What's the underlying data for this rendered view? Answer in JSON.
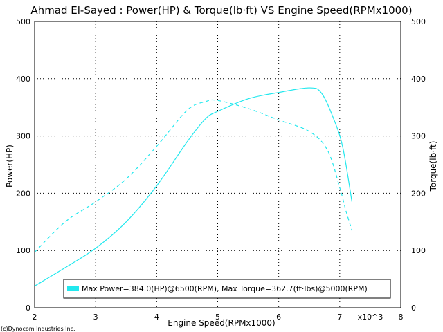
{
  "chart_data": {
    "type": "line",
    "title": "Ahmad El-Sayed : Power(HP) & Torque(lb·ft) VS Engine Speed(RPMx1000)",
    "xlabel": "Engine Speed(RPMx1000)",
    "ylabel_left": "Power(HP)",
    "ylabel_right": "Torque(lb·ft)",
    "x_multiplier_label": "x10^3",
    "xlim": [
      2,
      8
    ],
    "ylim": [
      0,
      500
    ],
    "x_ticks": [
      "2",
      "3",
      "4",
      "5",
      "6",
      "7",
      "8"
    ],
    "y_ticks_left": [
      "0",
      "100",
      "200",
      "300",
      "400",
      "500"
    ],
    "y_ticks_right": [
      "0",
      "100",
      "200",
      "300",
      "400",
      "500"
    ],
    "grid": true,
    "line_color": "#22e8ee",
    "legend": {
      "placement": "bottom-center",
      "text": "Max Power=384.0(HP)@6500(RPM), Max Torque=362.7(ft·lbs)@5000(RPM)"
    },
    "series": [
      {
        "name": "Power",
        "style": "solid",
        "x": [
          2.0,
          2.5,
          3.0,
          3.5,
          4.0,
          4.5,
          4.8,
          5.0,
          5.5,
          6.0,
          6.5,
          6.7,
          6.9,
          7.05,
          7.2
        ],
        "y": [
          38,
          70,
          104,
          150,
          213,
          290,
          330,
          343,
          365,
          376,
          384,
          375,
          330,
          280,
          185
        ]
      },
      {
        "name": "Torque",
        "style": "dashed",
        "x": [
          2.0,
          2.5,
          3.0,
          3.5,
          4.0,
          4.5,
          4.8,
          5.0,
          5.5,
          6.0,
          6.5,
          6.8,
          7.0,
          7.1,
          7.2
        ],
        "y": [
          97,
          150,
          185,
          225,
          282,
          345,
          360,
          362,
          348,
          328,
          308,
          275,
          210,
          170,
          135
        ]
      }
    ]
  },
  "footer": {
    "copyright": "(c)Dynocom Industries Inc."
  }
}
